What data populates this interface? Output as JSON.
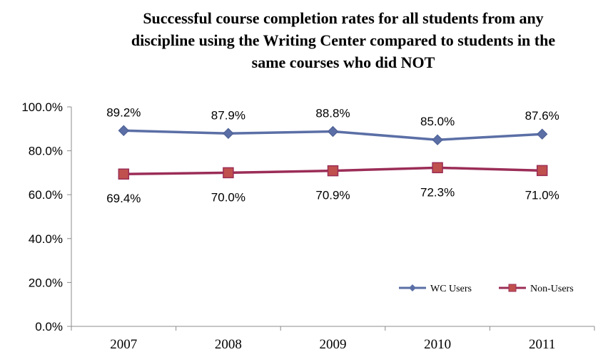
{
  "chart_data": {
    "type": "line",
    "title_lines": [
      "Successful course completion rates for all students from any",
      "discipline using the Writing Center compared to students in the",
      "same courses who did NOT"
    ],
    "categories": [
      "2007",
      "2008",
      "2009",
      "2010",
      "2011"
    ],
    "series": [
      {
        "name": "WC Users",
        "values": [
          89.2,
          87.9,
          88.8,
          85.0,
          87.6
        ],
        "labels": [
          "89.2%",
          "87.9%",
          "88.8%",
          "85.0%",
          "87.6%"
        ],
        "color": "#5b6fa6",
        "marker": "diamond",
        "label_position": "above"
      },
      {
        "name": "Non-Users",
        "values": [
          69.4,
          70.0,
          70.9,
          72.3,
          71.0
        ],
        "labels": [
          "69.4%",
          "70.0%",
          "70.9%",
          "72.3%",
          "71.0%"
        ],
        "color": "#9b2d57",
        "marker_fill": "#c0504d",
        "marker": "square",
        "label_position": "below"
      }
    ],
    "yticks": [
      "0.0%",
      "20.0%",
      "40.0%",
      "60.0%",
      "80.0%",
      "100.0%"
    ],
    "ylim": [
      0,
      100
    ],
    "grid": false,
    "legend_position": "bottom-right",
    "xlabel": "",
    "ylabel": ""
  }
}
